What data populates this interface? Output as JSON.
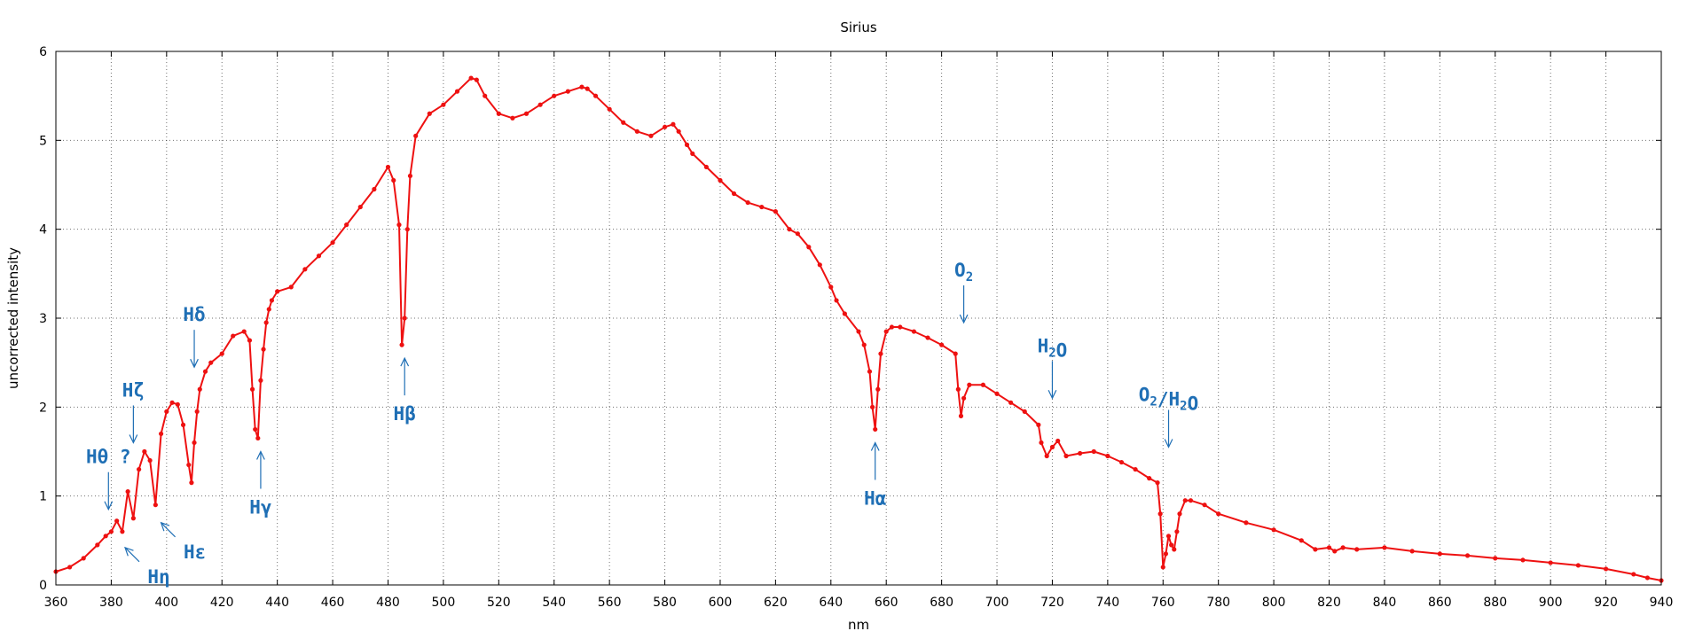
{
  "chart_data": {
    "type": "line",
    "title": "Sirius",
    "xlabel": "nm",
    "ylabel": "uncorrected intensity",
    "xlim": [
      360,
      940
    ],
    "ylim": [
      0,
      6
    ],
    "xticks": [
      360,
      380,
      400,
      420,
      440,
      460,
      480,
      500,
      520,
      540,
      560,
      580,
      600,
      620,
      640,
      660,
      680,
      700,
      720,
      740,
      760,
      780,
      800,
      820,
      840,
      860,
      880,
      900,
      920,
      940
    ],
    "yticks": [
      0,
      1,
      2,
      3,
      4,
      5,
      6
    ],
    "grid": true,
    "series_color": "#ee1111",
    "annotation_color": "#1f6fb5",
    "series": [
      {
        "x": [
          360,
          365,
          370,
          375,
          378,
          380,
          382,
          384,
          386,
          388,
          390,
          392,
          394,
          396,
          398,
          400,
          402,
          404,
          406,
          408,
          409,
          410,
          411,
          412,
          414,
          416,
          420,
          424,
          428,
          430,
          431,
          432,
          433,
          434,
          435,
          436,
          437,
          438,
          440,
          445,
          450,
          455,
          460,
          465,
          470,
          475,
          480,
          482,
          484,
          485,
          486,
          487,
          488,
          490,
          495,
          500,
          505,
          510,
          512,
          515,
          520,
          525,
          530,
          535,
          540,
          545,
          550,
          552,
          555,
          560,
          565,
          570,
          575,
          580,
          583,
          585,
          588,
          590,
          595,
          600,
          605,
          610,
          615,
          620,
          625,
          628,
          632,
          636,
          640,
          642,
          645,
          650,
          652,
          654,
          655,
          656,
          657,
          658,
          660,
          662,
          665,
          670,
          675,
          680,
          685,
          686,
          687,
          688,
          690,
          695,
          700,
          705,
          710,
          715,
          716,
          718,
          720,
          722,
          725,
          730,
          735,
          740,
          745,
          750,
          755,
          758,
          759,
          760,
          761,
          762,
          763,
          764,
          765,
          766,
          768,
          770,
          775,
          780,
          790,
          800,
          810,
          815,
          820,
          822,
          825,
          830,
          840,
          850,
          860,
          870,
          880,
          890,
          900,
          910,
          920,
          930,
          935,
          940
        ],
        "y": [
          0.15,
          0.2,
          0.3,
          0.45,
          0.55,
          0.6,
          0.72,
          0.6,
          1.05,
          0.75,
          1.3,
          1.5,
          1.4,
          0.9,
          1.7,
          1.95,
          2.05,
          2.03,
          1.8,
          1.35,
          1.15,
          1.6,
          1.95,
          2.2,
          2.4,
          2.5,
          2.6,
          2.8,
          2.85,
          2.75,
          2.2,
          1.75,
          1.65,
          2.3,
          2.65,
          2.95,
          3.1,
          3.2,
          3.3,
          3.35,
          3.55,
          3.7,
          3.85,
          4.05,
          4.25,
          4.45,
          4.7,
          4.55,
          4.05,
          2.7,
          3.0,
          4.0,
          4.6,
          5.05,
          5.3,
          5.4,
          5.55,
          5.7,
          5.68,
          5.5,
          5.3,
          5.25,
          5.3,
          5.4,
          5.5,
          5.55,
          5.6,
          5.58,
          5.5,
          5.35,
          5.2,
          5.1,
          5.05,
          5.15,
          5.18,
          5.1,
          4.95,
          4.85,
          4.7,
          4.55,
          4.4,
          4.3,
          4.25,
          4.2,
          4.0,
          3.95,
          3.8,
          3.6,
          3.35,
          3.2,
          3.05,
          2.85,
          2.7,
          2.4,
          2.0,
          1.75,
          2.2,
          2.6,
          2.85,
          2.9,
          2.9,
          2.85,
          2.78,
          2.7,
          2.6,
          2.2,
          1.9,
          2.1,
          2.25,
          2.25,
          2.15,
          2.05,
          1.95,
          1.8,
          1.6,
          1.45,
          1.55,
          1.62,
          1.45,
          1.48,
          1.5,
          1.45,
          1.38,
          1.3,
          1.2,
          1.15,
          0.8,
          0.2,
          0.35,
          0.55,
          0.45,
          0.4,
          0.6,
          0.8,
          0.95,
          0.95,
          0.9,
          0.8,
          0.7,
          0.62,
          0.5,
          0.4,
          0.42,
          0.38,
          0.42,
          0.4,
          0.42,
          0.38,
          0.35,
          0.33,
          0.3,
          0.28,
          0.25,
          0.22,
          0.18,
          0.12,
          0.08,
          0.05
        ]
      }
    ],
    "annotations": [
      {
        "label": "Hθ ?",
        "x": 379,
        "y": 0.85,
        "direction": "down"
      },
      {
        "label": "Hη",
        "x": 385,
        "y": 0.42,
        "direction": "up-left"
      },
      {
        "label": "Hζ",
        "x": 388,
        "y": 1.6,
        "direction": "down"
      },
      {
        "label": "Hε",
        "x": 398,
        "y": 0.7,
        "direction": "up-left"
      },
      {
        "label": "Hδ",
        "x": 410,
        "y": 2.45,
        "direction": "down"
      },
      {
        "label": "Hγ",
        "x": 434,
        "y": 1.5,
        "direction": "up"
      },
      {
        "label": "Hβ",
        "x": 486,
        "y": 2.55,
        "direction": "up"
      },
      {
        "label": "Hα",
        "x": 656,
        "y": 1.6,
        "direction": "up"
      },
      {
        "label": "O2",
        "x": 688,
        "y": 2.95,
        "direction": "down"
      },
      {
        "label": "H2O",
        "x": 720,
        "y": 2.1,
        "direction": "down"
      },
      {
        "label": "O2/H2O",
        "x": 762,
        "y": 1.55,
        "direction": "down"
      }
    ]
  }
}
